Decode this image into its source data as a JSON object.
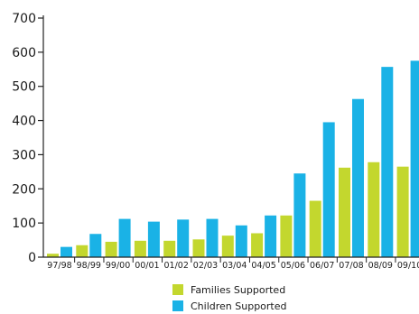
{
  "chart_data": {
    "type": "bar",
    "categories": [
      "97/98",
      "98/99",
      "99/00",
      "00/01",
      "01/02",
      "02/03",
      "03/04",
      "04/05",
      "05/06",
      "06/07",
      "07/08",
      "08/09",
      "09/10"
    ],
    "series": [
      {
        "name": "Families Supported",
        "color": "#c3d72e",
        "values": [
          10,
          35,
          45,
          48,
          48,
          52,
          63,
          70,
          122,
          165,
          262,
          278,
          265
        ]
      },
      {
        "name": "Children Supported",
        "color": "#1ab2e6",
        "values": [
          30,
          68,
          112,
          104,
          110,
          112,
          93,
          122,
          245,
          395,
          463,
          557,
          575
        ]
      }
    ],
    "yticks": [
      0,
      100,
      200,
      300,
      400,
      500,
      600,
      700
    ],
    "ylim": [
      0,
      700
    ],
    "legend_position": "bottom",
    "grid": false
  }
}
